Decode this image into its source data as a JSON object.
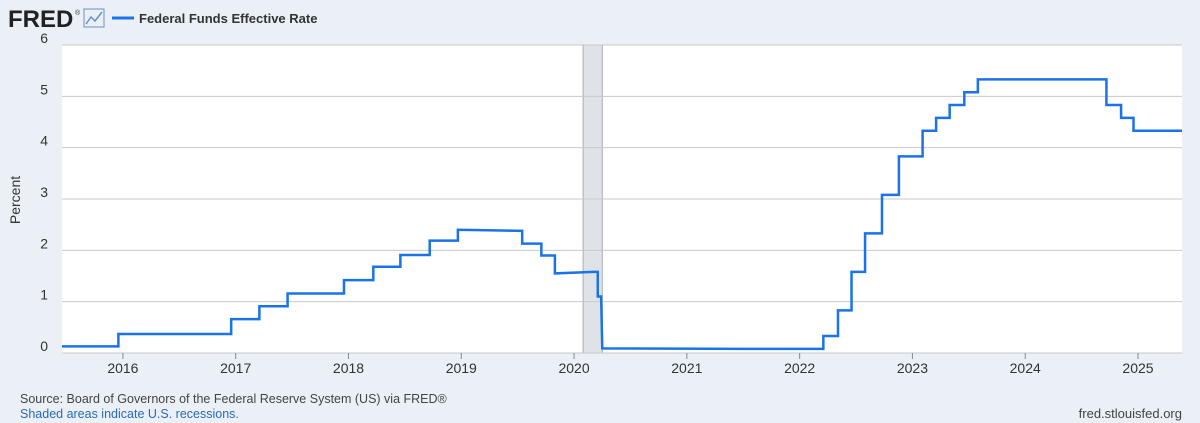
{
  "header": {
    "logo": "FRED",
    "logo_mark": "®"
  },
  "chart_data": {
    "type": "line",
    "series": [
      {
        "name": "Federal Funds Effective Rate",
        "color": "#1a73e8",
        "x": [
          2015.46,
          2015.96,
          2015.96,
          2016.96,
          2016.96,
          2017.21,
          2017.21,
          2017.46,
          2017.46,
          2017.96,
          2017.96,
          2018.22,
          2018.22,
          2018.46,
          2018.46,
          2018.72,
          2018.72,
          2018.97,
          2018.97,
          2019.54,
          2019.54,
          2019.71,
          2019.71,
          2019.83,
          2019.83,
          2020.17,
          2020.21,
          2020.21,
          2020.24,
          2020.25,
          2021.5,
          2022.21,
          2022.21,
          2022.34,
          2022.34,
          2022.46,
          2022.46,
          2022.58,
          2022.58,
          2022.73,
          2022.73,
          2022.88,
          2022.88,
          2023.09,
          2023.09,
          2023.21,
          2023.21,
          2023.33,
          2023.33,
          2023.46,
          2023.46,
          2023.58,
          2023.58,
          2024.72,
          2024.72,
          2024.85,
          2024.85,
          2024.96,
          2024.96,
          2025.39
        ],
        "values": [
          0.13,
          0.13,
          0.37,
          0.37,
          0.66,
          0.66,
          0.91,
          0.91,
          1.16,
          1.16,
          1.42,
          1.42,
          1.68,
          1.68,
          1.91,
          1.91,
          2.19,
          2.19,
          2.4,
          2.38,
          2.13,
          2.13,
          1.9,
          1.9,
          1.55,
          1.58,
          1.58,
          1.1,
          1.1,
          0.09,
          0.08,
          0.08,
          0.33,
          0.33,
          0.83,
          0.83,
          1.58,
          1.58,
          2.33,
          2.33,
          3.08,
          3.08,
          3.83,
          3.83,
          4.33,
          4.33,
          4.58,
          4.58,
          4.83,
          4.83,
          5.08,
          5.08,
          5.33,
          5.33,
          4.83,
          4.83,
          4.58,
          4.58,
          4.33,
          4.33
        ]
      }
    ],
    "recessions": [
      [
        2020.08,
        2020.25
      ]
    ],
    "ylabel": "Percent",
    "xlim": [
      2015.46,
      2025.39
    ],
    "xticks": [
      2016,
      2017,
      2018,
      2019,
      2020,
      2021,
      2022,
      2023,
      2024,
      2025
    ],
    "ylim": [
      0,
      6
    ],
    "yticks": [
      0,
      1,
      2,
      3,
      4,
      5,
      6
    ],
    "grid": true
  },
  "footer": {
    "source": "Source: Board of Governors of the Federal Reserve System (US) via FRED®",
    "note": "Shaded areas indicate U.S. recessions.",
    "site": "fred.stlouisfed.org"
  }
}
